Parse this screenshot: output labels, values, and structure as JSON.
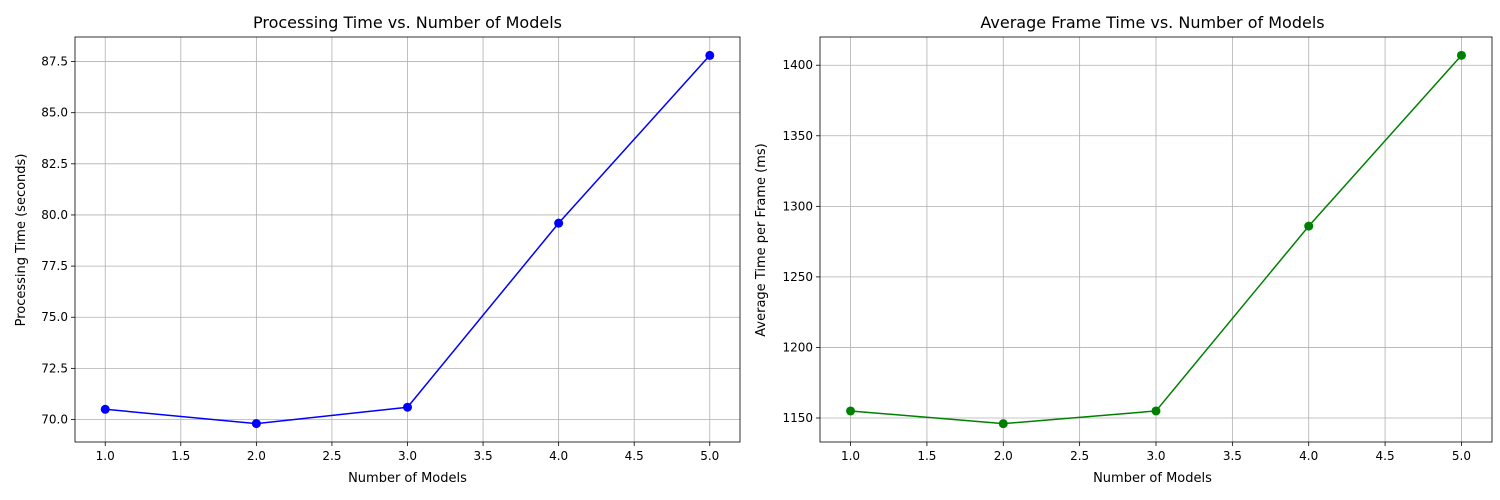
{
  "chart_data": [
    {
      "type": "line",
      "title": "Processing Time vs. Number of Models",
      "xlabel": "Number of Models",
      "ylabel": "Processing Time (seconds)",
      "x": [
        1,
        2,
        3,
        4,
        5
      ],
      "series": [
        {
          "values": [
            70.5,
            69.8,
            70.6,
            79.6,
            87.8
          ],
          "color": "#0000ff",
          "marker": "circle"
        }
      ],
      "xlim": [
        0.8,
        5.2
      ],
      "ylim": [
        68.9,
        88.7
      ],
      "xticks": [
        1.0,
        1.5,
        2.0,
        2.5,
        3.0,
        3.5,
        4.0,
        4.5,
        5.0
      ],
      "xtick_labels": [
        "1.0",
        "1.5",
        "2.0",
        "2.5",
        "3.0",
        "3.5",
        "4.0",
        "4.5",
        "5.0"
      ],
      "yticks": [
        70.0,
        72.5,
        75.0,
        77.5,
        80.0,
        82.5,
        85.0,
        87.5
      ],
      "ytick_labels": [
        "70.0",
        "72.5",
        "75.0",
        "77.5",
        "80.0",
        "82.5",
        "85.0",
        "87.5"
      ],
      "grid": true
    },
    {
      "type": "line",
      "title": "Average Frame Time vs. Number of Models",
      "xlabel": "Number of Models",
      "ylabel": "Average Time per Frame (ms)",
      "x": [
        1,
        2,
        3,
        4,
        5
      ],
      "series": [
        {
          "values": [
            1155,
            1146,
            1155,
            1286,
            1407
          ],
          "color": "#008000",
          "marker": "circle"
        }
      ],
      "xlim": [
        0.8,
        5.2
      ],
      "ylim": [
        1133,
        1420
      ],
      "xticks": [
        1.0,
        1.5,
        2.0,
        2.5,
        3.0,
        3.5,
        4.0,
        4.5,
        5.0
      ],
      "xtick_labels": [
        "1.0",
        "1.5",
        "2.0",
        "2.5",
        "3.0",
        "3.5",
        "4.0",
        "4.5",
        "5.0"
      ],
      "yticks": [
        1150,
        1200,
        1250,
        1300,
        1350,
        1400
      ],
      "ytick_labels": [
        "1150",
        "1200",
        "1250",
        "1300",
        "1350",
        "1400"
      ],
      "grid": true
    }
  ]
}
